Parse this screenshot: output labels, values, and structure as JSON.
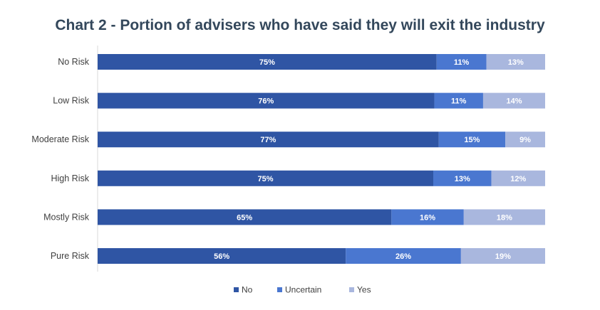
{
  "chart_data": {
    "type": "bar",
    "orientation": "horizontal",
    "stacked": true,
    "title": "Chart 2 - Portion of advisers who have said they will exit the industry",
    "categories": [
      "No Risk",
      "Low Risk",
      "Moderate Risk",
      "High Risk",
      "Mostly Risk",
      "Pure Risk"
    ],
    "series": [
      {
        "name": "No",
        "color": "#2f55a4",
        "values": [
          75,
          76,
          77,
          75,
          65,
          56
        ]
      },
      {
        "name": "Uncertain",
        "color": "#4a77d0",
        "values": [
          11,
          11,
          15,
          13,
          16,
          26
        ]
      },
      {
        "name": "Yes",
        "color": "#a9b7de",
        "values": [
          13,
          14,
          9,
          12,
          18,
          19
        ]
      }
    ],
    "value_suffix": "%",
    "legend_position": "bottom",
    "grid": false
  }
}
